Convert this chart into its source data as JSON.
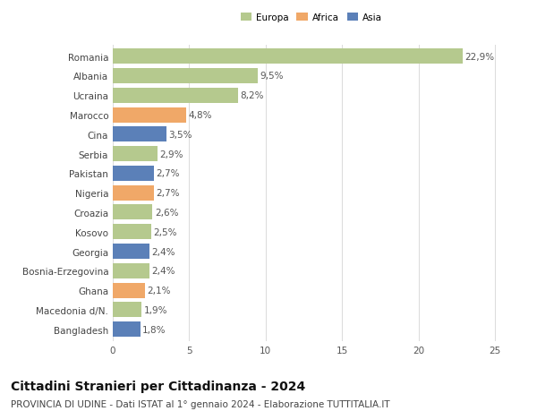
{
  "countries": [
    "Romania",
    "Albania",
    "Ucraina",
    "Marocco",
    "Cina",
    "Serbia",
    "Pakistan",
    "Nigeria",
    "Croazia",
    "Kosovo",
    "Georgia",
    "Bosnia-Erzegovina",
    "Ghana",
    "Macedonia d/N.",
    "Bangladesh"
  ],
  "values": [
    22.9,
    9.5,
    8.2,
    4.8,
    3.5,
    2.9,
    2.7,
    2.7,
    2.6,
    2.5,
    2.4,
    2.4,
    2.1,
    1.9,
    1.8
  ],
  "labels": [
    "22,9%",
    "9,5%",
    "8,2%",
    "4,8%",
    "3,5%",
    "2,9%",
    "2,7%",
    "2,7%",
    "2,6%",
    "2,5%",
    "2,4%",
    "2,4%",
    "2,1%",
    "1,9%",
    "1,8%"
  ],
  "continents": [
    "Europa",
    "Europa",
    "Europa",
    "Africa",
    "Asia",
    "Europa",
    "Asia",
    "Africa",
    "Europa",
    "Europa",
    "Asia",
    "Europa",
    "Africa",
    "Europa",
    "Asia"
  ],
  "continent_colors": {
    "Europa": "#b5c98e",
    "Africa": "#f0a868",
    "Asia": "#5b80b8"
  },
  "legend_labels": [
    "Europa",
    "Africa",
    "Asia"
  ],
  "legend_colors": [
    "#b5c98e",
    "#f0a868",
    "#5b80b8"
  ],
  "title": "Cittadini Stranieri per Cittadinanza - 2024",
  "subtitle": "PROVINCIA DI UDINE - Dati ISTAT al 1° gennaio 2024 - Elaborazione TUTTITALIA.IT",
  "xlim": [
    0,
    26
  ],
  "xticks": [
    0,
    5,
    10,
    15,
    20,
    25
  ],
  "background_color": "#ffffff",
  "grid_color": "#dddddd",
  "bar_height": 0.78,
  "label_fontsize": 7.5,
  "tick_fontsize": 7.5,
  "title_fontsize": 10,
  "subtitle_fontsize": 7.5
}
